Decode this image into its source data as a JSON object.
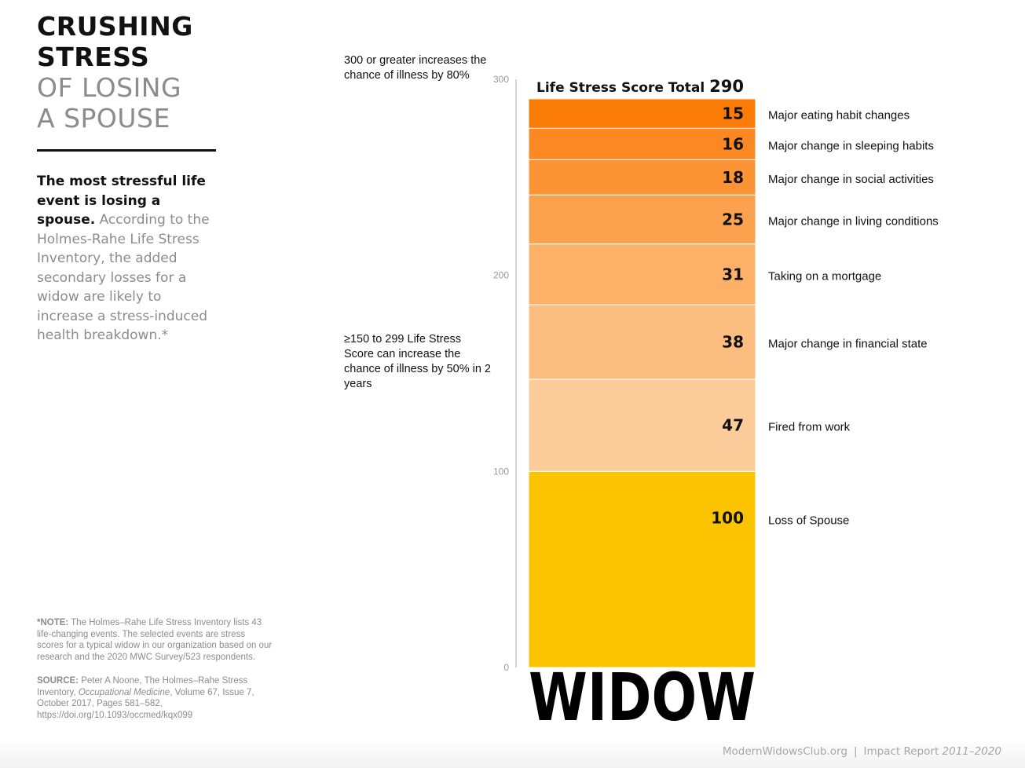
{
  "title": {
    "line1": "CRUSHING",
    "line2": "STRESS",
    "line3": "OF LOSING",
    "line4": "A SPOUSE"
  },
  "intro": {
    "bold": "The most stressful life event is losing a spouse.",
    "text": " According to the Holmes-Rahe Life Stress Inventory, the added secondary losses for a widow are likely to increase a stress-induced health breakdown.*"
  },
  "note": {
    "label": "*NOTE:",
    "text": " The Holmes–Rahe Life Stress Inventory lists 43 life-changing events. The selected events are stress scores for a typical widow in our organization based on our research and the 2020 MWC Survey/523 respondents."
  },
  "source": {
    "label": "SOURCE:",
    "text1": " Peter A Noone, The Holmes–Rahe Stress Inventory, ",
    "journal": "Occupational Medicine",
    "text2": ", Volume 67, Issue 7, October 2017, Pages 581–582, https://doi.org/10.1093/occmed/kqx099"
  },
  "annotations": {
    "high": "300 or greater increases the chance of illness by 80%",
    "mid": "≥150 to 299 Life Stress Score can increase the chance of illness by 50% in 2 years"
  },
  "footer": {
    "site": "ModernWidowsClub.org",
    "separator": "|",
    "report": "Impact Report",
    "years": "2011–2020"
  },
  "chart_data": {
    "type": "bar",
    "subtype": "stacked-single",
    "category": "WIDOW",
    "total_label": "Life Stress Score Total",
    "total": 290,
    "ylim": [
      0,
      300
    ],
    "yticks": [
      0,
      100,
      200,
      300
    ],
    "segments": [
      {
        "label": "Loss of Spouse",
        "value": 100,
        "color": "#FCC400"
      },
      {
        "label": "Fired from work",
        "value": 47,
        "color": "#FCCC9A"
      },
      {
        "label": "Major change in financial state",
        "value": 38,
        "color": "#FCBE80"
      },
      {
        "label": "Taking on a mortgage",
        "value": 31,
        "color": "#FCB068"
      },
      {
        "label": "Major change in living conditions",
        "value": 25,
        "color": "#FCA24E"
      },
      {
        "label": "Major change in social activities",
        "value": 18,
        "color": "#FC9436"
      },
      {
        "label": "Major change in sleeping habits",
        "value": 16,
        "color": "#FC8824"
      },
      {
        "label": "Major eating habit changes",
        "value": 15,
        "color": "#FC7C08"
      }
    ]
  }
}
